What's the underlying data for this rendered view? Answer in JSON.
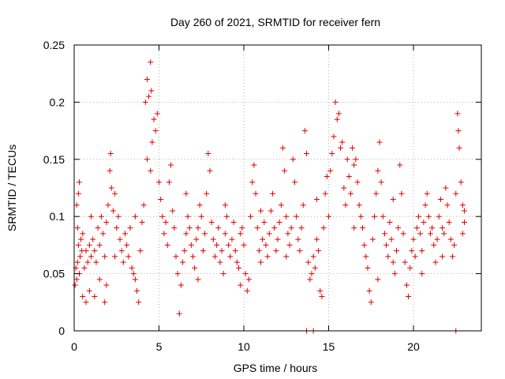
{
  "chart_data": {
    "type": "scatter",
    "title": "Day 260 of 2021, SRMTID for receiver fern",
    "xlabel": "GPS time / hours",
    "ylabel": "SRMTID / TECUs",
    "xlim": [
      0,
      24
    ],
    "ylim": [
      0,
      0.25
    ],
    "x_ticks": [
      0,
      5,
      10,
      15,
      20
    ],
    "x_tick_labels": [
      "0",
      "5",
      "10",
      "15",
      "20"
    ],
    "y_ticks": [
      0,
      0.05,
      0.1,
      0.15,
      0.2,
      0.25
    ],
    "y_tick_labels": [
      "0",
      "0.05",
      "0.1",
      "0.15",
      "0.2",
      "0.25"
    ],
    "grid": true,
    "marker": "+",
    "color": "#e00000",
    "series": [
      {
        "name": "SRMTID",
        "points": [
          [
            0.05,
            0.04
          ],
          [
            0.1,
            0.055
          ],
          [
            0.15,
            0.045
          ],
          [
            0.2,
            0.06
          ],
          [
            0.25,
            0.075
          ],
          [
            0.3,
            0.05
          ],
          [
            0.35,
            0.065
          ],
          [
            0.4,
            0.08
          ],
          [
            0.45,
            0.07
          ],
          [
            0.5,
            0.085
          ],
          [
            0.2,
            0.09
          ],
          [
            0.25,
            0.12
          ],
          [
            0.3,
            0.13
          ],
          [
            0.15,
            0.11
          ],
          [
            0.6,
            0.055
          ],
          [
            0.7,
            0.07
          ],
          [
            0.8,
            0.06
          ],
          [
            0.9,
            0.075
          ],
          [
            1.0,
            0.065
          ],
          [
            1.1,
            0.08
          ],
          [
            1.2,
            0.07
          ],
          [
            1.3,
            0.06
          ],
          [
            1.4,
            0.09
          ],
          [
            1.5,
            0.075
          ],
          [
            1.6,
            0.1
          ],
          [
            1.7,
            0.085
          ],
          [
            1.8,
            0.065
          ],
          [
            1.9,
            0.095
          ],
          [
            2.0,
            0.11
          ],
          [
            2.1,
            0.14
          ],
          [
            2.15,
            0.155
          ],
          [
            2.2,
            0.125
          ],
          [
            2.3,
            0.105
          ],
          [
            2.4,
            0.12
          ],
          [
            2.5,
            0.09
          ],
          [
            2.6,
            0.1
          ],
          [
            2.7,
            0.08
          ],
          [
            0.7,
            0.025
          ],
          [
            0.9,
            0.035
          ],
          [
            1.2,
            0.03
          ],
          [
            1.5,
            0.045
          ],
          [
            1.8,
            0.025
          ],
          [
            1.9,
            0.04
          ],
          [
            2.8,
            0.07
          ],
          [
            2.9,
            0.06
          ],
          [
            3.0,
            0.085
          ],
          [
            3.1,
            0.075
          ],
          [
            3.2,
            0.065
          ],
          [
            3.3,
            0.09
          ],
          [
            3.4,
            0.055
          ],
          [
            3.5,
            0.05
          ],
          [
            3.6,
            0.045
          ],
          [
            3.7,
            0.035
          ],
          [
            3.8,
            0.025
          ],
          [
            3.9,
            0.07
          ],
          [
            4.0,
            0.095
          ],
          [
            4.1,
            0.11
          ],
          [
            4.2,
            0.2
          ],
          [
            4.3,
            0.22
          ],
          [
            4.4,
            0.205
          ],
          [
            4.5,
            0.235
          ],
          [
            4.55,
            0.21
          ],
          [
            4.6,
            0.165
          ],
          [
            4.7,
            0.185
          ],
          [
            4.8,
            0.175
          ],
          [
            4.9,
            0.19
          ],
          [
            5.0,
            0.13
          ],
          [
            5.1,
            0.115
          ],
          [
            5.2,
            0.1
          ],
          [
            4.3,
            0.15
          ],
          [
            4.5,
            0.14
          ],
          [
            5.3,
            0.085
          ],
          [
            5.4,
            0.095
          ],
          [
            5.5,
            0.075
          ],
          [
            5.6,
            0.13
          ],
          [
            5.7,
            0.145
          ],
          [
            5.8,
            0.105
          ],
          [
            5.9,
            0.09
          ],
          [
            6.0,
            0.065
          ],
          [
            6.1,
            0.05
          ],
          [
            6.2,
            0.015
          ],
          [
            6.3,
            0.04
          ],
          [
            6.4,
            0.06
          ],
          [
            6.5,
            0.07
          ],
          [
            6.6,
            0.085
          ],
          [
            6.7,
            0.1
          ],
          [
            6.8,
            0.09
          ],
          [
            6.9,
            0.075
          ],
          [
            7.0,
            0.065
          ],
          [
            7.1,
            0.055
          ],
          [
            7.2,
            0.08
          ],
          [
            7.3,
            0.09
          ],
          [
            7.4,
            0.11
          ],
          [
            7.5,
            0.1
          ],
          [
            7.6,
            0.07
          ],
          [
            7.7,
            0.085
          ],
          [
            7.8,
            0.12
          ],
          [
            7.9,
            0.155
          ],
          [
            8.0,
            0.14
          ],
          [
            8.1,
            0.095
          ],
          [
            8.2,
            0.08
          ],
          [
            8.3,
            0.065
          ],
          [
            8.4,
            0.075
          ],
          [
            8.5,
            0.09
          ],
          [
            8.6,
            0.06
          ],
          [
            8.7,
            0.07
          ],
          [
            8.8,
            0.05
          ],
          [
            8.9,
            0.085
          ],
          [
            9.0,
            0.1
          ],
          [
            9.1,
            0.075
          ],
          [
            9.2,
            0.065
          ],
          [
            9.3,
            0.08
          ],
          [
            9.4,
            0.095
          ],
          [
            9.5,
            0.07
          ],
          [
            9.6,
            0.06
          ],
          [
            9.7,
            0.055
          ],
          [
            9.8,
            0.085
          ],
          [
            9.9,
            0.09
          ],
          [
            10.0,
            0.075
          ],
          [
            10.1,
            0.05
          ],
          [
            10.2,
            0.035
          ],
          [
            10.3,
            0.045
          ],
          [
            10.4,
            0.1
          ],
          [
            10.5,
            0.13
          ],
          [
            10.6,
            0.145
          ],
          [
            10.7,
            0.12
          ],
          [
            10.8,
            0.09
          ],
          [
            10.9,
            0.07
          ],
          [
            11.0,
            0.06
          ],
          [
            11.1,
            0.08
          ],
          [
            11.2,
            0.095
          ],
          [
            11.3,
            0.075
          ],
          [
            11.4,
            0.065
          ],
          [
            11.5,
            0.085
          ],
          [
            11.6,
            0.105
          ],
          [
            11.7,
            0.12
          ],
          [
            11.8,
            0.09
          ],
          [
            11.9,
            0.07
          ],
          [
            12.0,
            0.08
          ],
          [
            12.1,
            0.095
          ],
          [
            12.2,
            0.11
          ],
          [
            12.3,
            0.16
          ],
          [
            12.4,
            0.14
          ],
          [
            12.5,
            0.1
          ],
          [
            12.6,
            0.085
          ],
          [
            12.7,
            0.075
          ],
          [
            12.8,
            0.09
          ],
          [
            12.9,
            0.15
          ],
          [
            13.0,
            0.13
          ],
          [
            13.1,
            0.1
          ],
          [
            13.2,
            0.08
          ],
          [
            13.3,
            0.07
          ],
          [
            13.4,
            0.09
          ],
          [
            13.5,
            0.11
          ],
          [
            13.6,
            0.175
          ],
          [
            13.7,
            0.155
          ],
          [
            13.8,
            0.06
          ],
          [
            13.9,
            0.045
          ],
          [
            14.0,
            0.05
          ],
          [
            14.1,
            0.065
          ],
          [
            14.2,
            0.055
          ],
          [
            14.3,
            0.08
          ],
          [
            14.4,
            0.07
          ],
          [
            14.5,
            0.035
          ],
          [
            14.6,
            0.03
          ],
          [
            14.7,
            0.09
          ],
          [
            14.8,
            0.12
          ],
          [
            14.9,
            0.135
          ],
          [
            15.0,
            0.1
          ],
          [
            15.1,
            0.14
          ],
          [
            15.2,
            0.155
          ],
          [
            15.3,
            0.17
          ],
          [
            15.4,
            0.2
          ],
          [
            15.5,
            0.185
          ],
          [
            15.6,
            0.19
          ],
          [
            15.7,
            0.16
          ],
          [
            15.8,
            0.165
          ],
          [
            15.9,
            0.125
          ],
          [
            16.0,
            0.11
          ],
          [
            16.1,
            0.15
          ],
          [
            16.2,
            0.135
          ],
          [
            16.3,
            0.12
          ],
          [
            16.4,
            0.16
          ],
          [
            16.5,
            0.145
          ],
          [
            16.6,
            0.15
          ],
          [
            16.7,
            0.13
          ],
          [
            16.8,
            0.11
          ],
          [
            16.9,
            0.1
          ],
          [
            17.0,
            0.09
          ],
          [
            17.1,
            0.075
          ],
          [
            17.2,
            0.065
          ],
          [
            17.3,
            0.055
          ],
          [
            17.4,
            0.035
          ],
          [
            17.5,
            0.025
          ],
          [
            17.6,
            0.08
          ],
          [
            17.7,
            0.1
          ],
          [
            17.8,
            0.12
          ],
          [
            17.9,
            0.14
          ],
          [
            18.0,
            0.165
          ],
          [
            18.1,
            0.13
          ],
          [
            18.2,
            0.1
          ],
          [
            18.3,
            0.085
          ],
          [
            18.4,
            0.075
          ],
          [
            18.5,
            0.065
          ],
          [
            18.6,
            0.095
          ],
          [
            18.7,
            0.08
          ],
          [
            18.8,
            0.06
          ],
          [
            18.9,
            0.05
          ],
          [
            19.0,
            0.07
          ],
          [
            19.1,
            0.09
          ],
          [
            19.2,
            0.145
          ],
          [
            19.3,
            0.12
          ],
          [
            19.4,
            0.085
          ],
          [
            19.5,
            0.06
          ],
          [
            19.6,
            0.04
          ],
          [
            19.7,
            0.03
          ],
          [
            19.8,
            0.055
          ],
          [
            19.9,
            0.07
          ],
          [
            20.0,
            0.08
          ],
          [
            20.1,
            0.065
          ],
          [
            20.2,
            0.09
          ],
          [
            20.3,
            0.1
          ],
          [
            20.4,
            0.085
          ],
          [
            20.5,
            0.07
          ],
          [
            20.6,
            0.095
          ],
          [
            20.7,
            0.11
          ],
          [
            20.8,
            0.12
          ],
          [
            20.9,
            0.1
          ],
          [
            21.0,
            0.085
          ],
          [
            21.1,
            0.09
          ],
          [
            21.2,
            0.075
          ],
          [
            21.3,
            0.06
          ],
          [
            21.4,
            0.08
          ],
          [
            21.5,
            0.1
          ],
          [
            21.6,
            0.115
          ],
          [
            21.7,
            0.09
          ],
          [
            21.8,
            0.085
          ],
          [
            21.9,
            0.125
          ],
          [
            22.0,
            0.11
          ],
          [
            22.1,
            0.095
          ],
          [
            22.2,
            0.08
          ],
          [
            22.3,
            0.065
          ],
          [
            22.4,
            0.075
          ],
          [
            22.5,
            0.12
          ],
          [
            22.6,
            0.19
          ],
          [
            22.65,
            0.175
          ],
          [
            22.7,
            0.16
          ],
          [
            22.8,
            0.13
          ],
          [
            22.9,
            0.11
          ],
          [
            23.0,
            0.095
          ],
          [
            23.0,
            0.105
          ],
          [
            22.9,
            0.085
          ],
          [
            1.0,
            0.1
          ],
          [
            2.4,
            0.065
          ],
          [
            3.6,
            0.1
          ],
          [
            6.6,
            0.12
          ],
          [
            8.9,
            0.11
          ],
          [
            11.0,
            0.105
          ],
          [
            12.5,
            0.065
          ],
          [
            16.5,
            0.09
          ],
          [
            18.8,
            0.115
          ],
          [
            20.5,
            0.05
          ],
          [
            21.7,
            0.065
          ],
          [
            0.5,
            0.03
          ],
          [
            7.3,
            0.045
          ],
          [
            9.8,
            0.04
          ],
          [
            14.3,
            0.115
          ],
          [
            17.9,
            0.045
          ],
          [
            13.7,
            0.0
          ],
          [
            14.1,
            0.0
          ],
          [
            22.5,
            0.0
          ]
        ]
      }
    ]
  }
}
